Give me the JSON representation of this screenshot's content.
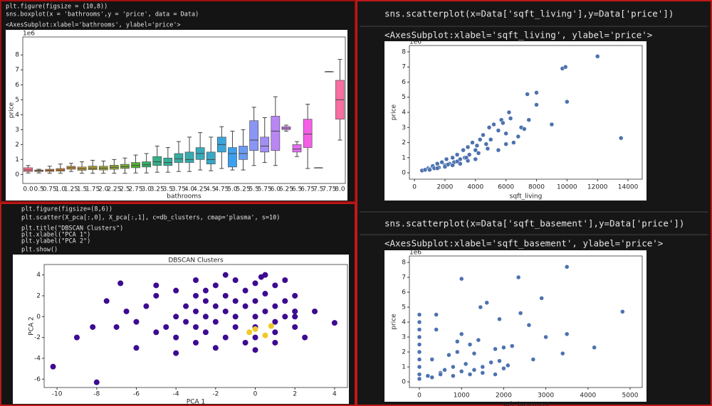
{
  "cells": [
    {
      "code": [
        "plt.figure(figsize = (10,8))",
        "sns.boxplot(x = 'bathrooms',y = 'price', data = Data)"
      ],
      "output": "<AxesSubplot:xlabel='bathrooms', ylabel='price'>"
    },
    {
      "code": [
        "plt.figure(figsize=(8,6))",
        "plt.scatter(X_pca[:,0], X_pca[:,1], c=db_clusters, cmap='plasma', s=10)",
        "plt.title(\"DBSCAN Clusters\")",
        "plt.xlabel(\"PCA 1\")",
        "plt.ylabel(\"PCA 2\")",
        "plt.show()"
      ]
    },
    {
      "code": [
        "sns.scatterplot(x=Data['sqft_living'],y=Data['price'])"
      ],
      "output": "<AxesSubplot:xlabel='sqft_living', ylabel='price'>"
    },
    {
      "code": [
        "sns.scatterplot(x=Data['sqft_basement'],y=Data['price'])"
      ],
      "output": "<AxesSubplot:xlabel='sqft_basement', ylabel='price'>"
    }
  ],
  "chart_data": [
    {
      "type": "box",
      "x_label": "bathrooms",
      "y_label": "price",
      "y_offset_label": "1e6",
      "categories": [
        "0.0",
        "0.5",
        "0.75",
        "1.0",
        "1.25",
        "1.5",
        "1.75",
        "2.0",
        "2.25",
        "2.5",
        "2.75",
        "3.0",
        "3.25",
        "3.5",
        "3.75",
        "4.0",
        "4.25",
        "4.5",
        "4.75",
        "5.0",
        "5.25",
        "5.5",
        "5.75",
        "6.0",
        "6.25",
        "6.5",
        "6.75",
        "7.5",
        "7.75",
        "8.0"
      ],
      "whislo": [
        0.1,
        0.1,
        0.08,
        0.08,
        0.2,
        0.08,
        0.08,
        0.08,
        0.08,
        0.08,
        0.1,
        0.1,
        0.15,
        0.15,
        0.2,
        0.2,
        0.3,
        0.25,
        0.4,
        0.3,
        0.3,
        0.6,
        0.8,
        0.6,
        2.9,
        1.2,
        0.4,
        0.45,
        6.88,
        2.3
      ],
      "q1": [
        0.2,
        0.2,
        0.2,
        0.22,
        0.35,
        0.28,
        0.32,
        0.3,
        0.35,
        0.4,
        0.45,
        0.5,
        0.6,
        0.6,
        0.8,
        0.8,
        1.0,
        0.7,
        1.5,
        0.5,
        1.0,
        1.6,
        1.5,
        1.6,
        3.0,
        1.5,
        1.8,
        0.45,
        6.88,
        3.7
      ],
      "median": [
        0.3,
        0.25,
        0.28,
        0.3,
        0.45,
        0.38,
        0.42,
        0.42,
        0.48,
        0.52,
        0.6,
        0.65,
        0.85,
        0.8,
        1.05,
        1.0,
        1.4,
        1.0,
        2.0,
        1.4,
        1.4,
        2.3,
        1.9,
        2.9,
        3.1,
        1.7,
        2.7,
        0.45,
        6.88,
        5.0
      ],
      "q3": [
        0.45,
        0.3,
        0.35,
        0.4,
        0.55,
        0.5,
        0.56,
        0.55,
        0.62,
        0.68,
        0.8,
        0.85,
        1.2,
        1.1,
        1.4,
        1.5,
        1.8,
        1.5,
        2.5,
        1.8,
        1.9,
        3.6,
        2.5,
        3.9,
        3.2,
        2.0,
        3.7,
        0.45,
        6.88,
        6.3
      ],
      "whishi": [
        0.6,
        0.35,
        0.55,
        0.7,
        0.75,
        0.85,
        0.95,
        0.9,
        1.0,
        1.1,
        1.3,
        1.4,
        1.9,
        1.8,
        2.2,
        2.5,
        2.8,
        2.5,
        3.2,
        2.9,
        3.0,
        4.5,
        3.8,
        5.2,
        3.3,
        2.2,
        4.7,
        0.45,
        6.88,
        7.7
      ],
      "colors": [
        "#f77189",
        "#f7754f",
        "#e7802f",
        "#d98b32",
        "#cc9232",
        "#bf9832",
        "#b09d31",
        "#a1a131",
        "#8fa631",
        "#77ab31",
        "#50b131",
        "#32b166",
        "#34af86",
        "#35ae98",
        "#36ada4",
        "#37abae",
        "#38aaba",
        "#39a8c6",
        "#3aa5d8",
        "#3ca0ee",
        "#6a9bf4",
        "#8996f4",
        "#a28ef4",
        "#b887f4",
        "#cf7df4",
        "#e46ef4",
        "#f45fe6",
        "#f564cf",
        "#f669b8",
        "#f76ea1"
      ],
      "ylim": [
        -0.6,
        9.2
      ],
      "yticks": [
        0,
        1,
        2,
        3,
        4,
        5,
        6,
        7,
        8
      ]
    },
    {
      "type": "scatter",
      "title": "DBSCAN Clusters",
      "x_label": "PCA 1",
      "y_label": "PCA 2",
      "xlim": [
        -10.65,
        4.65
      ],
      "xticks": [
        -10,
        -8,
        -6,
        -4,
        -2,
        0,
        2,
        4
      ],
      "ylim": [
        -6.8,
        5
      ],
      "yticks": [
        -6,
        -4,
        -2,
        0,
        2,
        4
      ],
      "point_size": 4,
      "series": [
        {
          "color": "#3d0a91",
          "x": [
            -3,
            -2,
            -1,
            0,
            1,
            2,
            -3.5,
            -2.5,
            -1.5,
            -0.5,
            0.5,
            1.5,
            2,
            -4,
            -3,
            -2,
            -1,
            0,
            1,
            2,
            -4.5,
            -3.5,
            -2.5,
            -1.5,
            -0.5,
            0.5,
            1.5,
            -5,
            -3,
            -2,
            -1,
            0,
            1,
            2,
            -4,
            -2.5,
            -1,
            0,
            1,
            -3,
            -1.5,
            0,
            1,
            -6,
            -7,
            -6.5,
            -5.5,
            -5,
            -4,
            -3,
            -1.5,
            0.5,
            1.5,
            -8,
            -10.2,
            -9,
            -8.2,
            4,
            -7.5,
            -6,
            -2,
            0,
            -4,
            -6.8,
            -5,
            3,
            2.5,
            -0.5,
            0.3,
            -2.5
          ],
          "values": [
            2,
            3,
            3.5,
            3.2,
            3,
            2,
            1,
            1.5,
            2,
            2.5,
            2.2,
            1.5,
            0.5,
            0,
            0.5,
            1,
            1.5,
            1.5,
            1,
            0,
            -1,
            -0.5,
            0,
            0.5,
            1,
            0.5,
            0,
            -1.5,
            -1,
            -0.5,
            0,
            0,
            -0.5,
            -1,
            -2,
            -1.5,
            -1,
            -1,
            -1.5,
            -2.5,
            -2,
            -2,
            -2.5,
            -0.5,
            -1,
            0.5,
            1,
            2,
            2.5,
            3.5,
            4,
            4,
            3.5,
            -6.3,
            -4.8,
            -2,
            -1,
            -0.6,
            1.5,
            -3,
            -3,
            -3.2,
            -3.5,
            3.2,
            3,
            0.5,
            -2,
            -2.5,
            3.8,
            2.5
          ]
        },
        {
          "color": "#f0c929",
          "x": [
            0,
            0.5,
            -0.3,
            0.8
          ],
          "values": [
            -1.2,
            -1.8,
            -1.5,
            -0.9
          ]
        }
      ]
    },
    {
      "type": "scatter",
      "x_label": "sqft_living",
      "y_label": "price",
      "y_offset_label": "1e6",
      "xlim": [
        -330,
        14930
      ],
      "xticks": [
        0,
        2000,
        4000,
        6000,
        8000,
        10000,
        12000,
        14000
      ],
      "ylim": [
        -0.42,
        8.42
      ],
      "yticks": [
        0,
        1,
        2,
        3,
        4,
        5,
        6,
        7,
        8
      ],
      "point_size": 3,
      "edge_color": "#ffffff",
      "series": [
        {
          "color": "#4c72b0",
          "x": [
            500,
            700,
            900,
            1000,
            1200,
            1300,
            1500,
            1600,
            1800,
            2000,
            2100,
            2300,
            2500,
            2600,
            2800,
            3000,
            3200,
            3300,
            3500,
            3600,
            3800,
            4000,
            4100,
            4300,
            4500,
            4700,
            4900,
            5000,
            5200,
            5500,
            5700,
            6000,
            6200,
            6500,
            7000,
            7400,
            7500,
            8000,
            8000,
            9000,
            9700,
            9900,
            10000,
            12000,
            13540,
            1500,
            2000,
            2500,
            3000,
            3500,
            4000,
            1000,
            2200,
            2800,
            3400,
            4200,
            4800,
            5500,
            6000,
            6800,
            7200,
            5800,
            6300
          ],
          "values": [
            0.15,
            0.2,
            0.3,
            0.25,
            0.45,
            0.3,
            0.6,
            0.35,
            0.7,
            0.5,
            0.9,
            0.6,
            1.0,
            0.7,
            1.2,
            0.9,
            1.5,
            1.0,
            1.7,
            1.2,
            2.0,
            1.5,
            1.8,
            2.2,
            2.5,
            1.9,
            3.0,
            2.2,
            3.2,
            2.8,
            3.5,
            2.6,
            4.0,
            2.0,
            3.0,
            5.2,
            3.5,
            4.5,
            5.3,
            3.2,
            6.9,
            7.0,
            4.7,
            7.7,
            2.3,
            0.3,
            0.4,
            0.5,
            0.6,
            0.8,
            0.9,
            0.2,
            0.55,
            0.75,
            1.0,
            1.3,
            1.6,
            1.5,
            1.9,
            2.4,
            2.9,
            3.3,
            3.6
          ]
        }
      ]
    },
    {
      "type": "scatter",
      "x_label": "sqft_basement",
      "y_label": "price",
      "y_offset_label": "1e6",
      "xlim": [
        -237,
        5287
      ],
      "xticks": [
        0,
        1000,
        2000,
        3000,
        4000,
        5000
      ],
      "ylim": [
        -0.38,
        8.43
      ],
      "yticks": [
        0,
        1,
        2,
        3,
        4,
        5,
        6,
        7,
        8
      ],
      "point_size": 3,
      "edge_color": "#ffffff",
      "series": [
        {
          "color": "#4c72b0",
          "x": [
            0,
            0,
            0,
            0,
            0,
            0,
            0,
            0,
            0,
            0,
            200,
            300,
            400,
            500,
            600,
            700,
            800,
            900,
            1000,
            1100,
            1200,
            1300,
            1400,
            1500,
            1600,
            1700,
            1800,
            1900,
            2000,
            2100,
            300,
            500,
            800,
            1000,
            1200,
            1500,
            1800,
            400,
            900,
            1300,
            1000,
            1450,
            2000,
            2350,
            2400,
            2600,
            2900,
            3000,
            3500,
            3500,
            4150,
            4820,
            1900,
            2200,
            2700,
            3400
          ],
          "values": [
            0.2,
            0.5,
            1.0,
            1.5,
            2.0,
            2.5,
            3.0,
            3.5,
            4.0,
            4.5,
            0.4,
            1.5,
            4.5,
            0.6,
            0.8,
            1.8,
            1.0,
            2.7,
            6.9,
            1.2,
            2.5,
            0.8,
            2.8,
            1.0,
            5.3,
            1.3,
            2.2,
            1.4,
            0.9,
            1.1,
            0.3,
            0.5,
            0.4,
            0.7,
            0.5,
            0.6,
            0.5,
            3.5,
            2.0,
            1.9,
            3.2,
            5.0,
            2.3,
            7.0,
            4.6,
            3.8,
            5.6,
            3.0,
            7.7,
            3.2,
            2.3,
            4.7,
            4.2,
            2.4,
            1.5,
            1.9
          ]
        }
      ]
    }
  ]
}
